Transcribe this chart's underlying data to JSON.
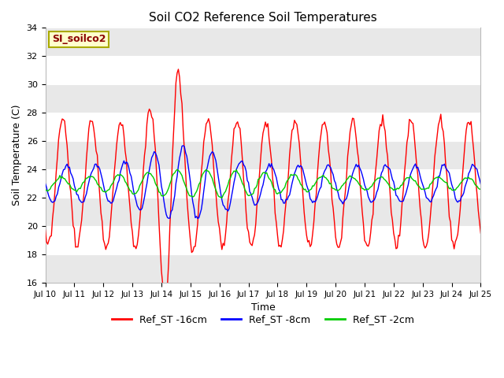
{
  "title": "Soil CO2 Reference Soil Temperatures",
  "xlabel": "Time",
  "ylabel": "Soil Temperature (C)",
  "ylim": [
    16,
    34
  ],
  "yticks": [
    16,
    18,
    20,
    22,
    24,
    26,
    28,
    30,
    32,
    34
  ],
  "fig_bg_color": "#ffffff",
  "plot_bg_color": "#ffffff",
  "band_color": "#e8e8e8",
  "station_label": "SI_soilco2",
  "legend_entries": [
    "Ref_ST -16cm",
    "Ref_ST -8cm",
    "Ref_ST -2cm"
  ],
  "line_colors": [
    "#ff0000",
    "#0000ff",
    "#00cc00"
  ],
  "xtick_labels": [
    "Jul 10",
    "Jul 11",
    "Jul 12",
    "Jul 13",
    "Jul 14",
    "Jul 15",
    "Jul 16",
    "Jul 17",
    "Jul 18",
    "Jul 19",
    "Jul 20",
    "Jul 21",
    "Jul 22",
    "Jul 23",
    "Jul 24",
    "Jul 25"
  ]
}
